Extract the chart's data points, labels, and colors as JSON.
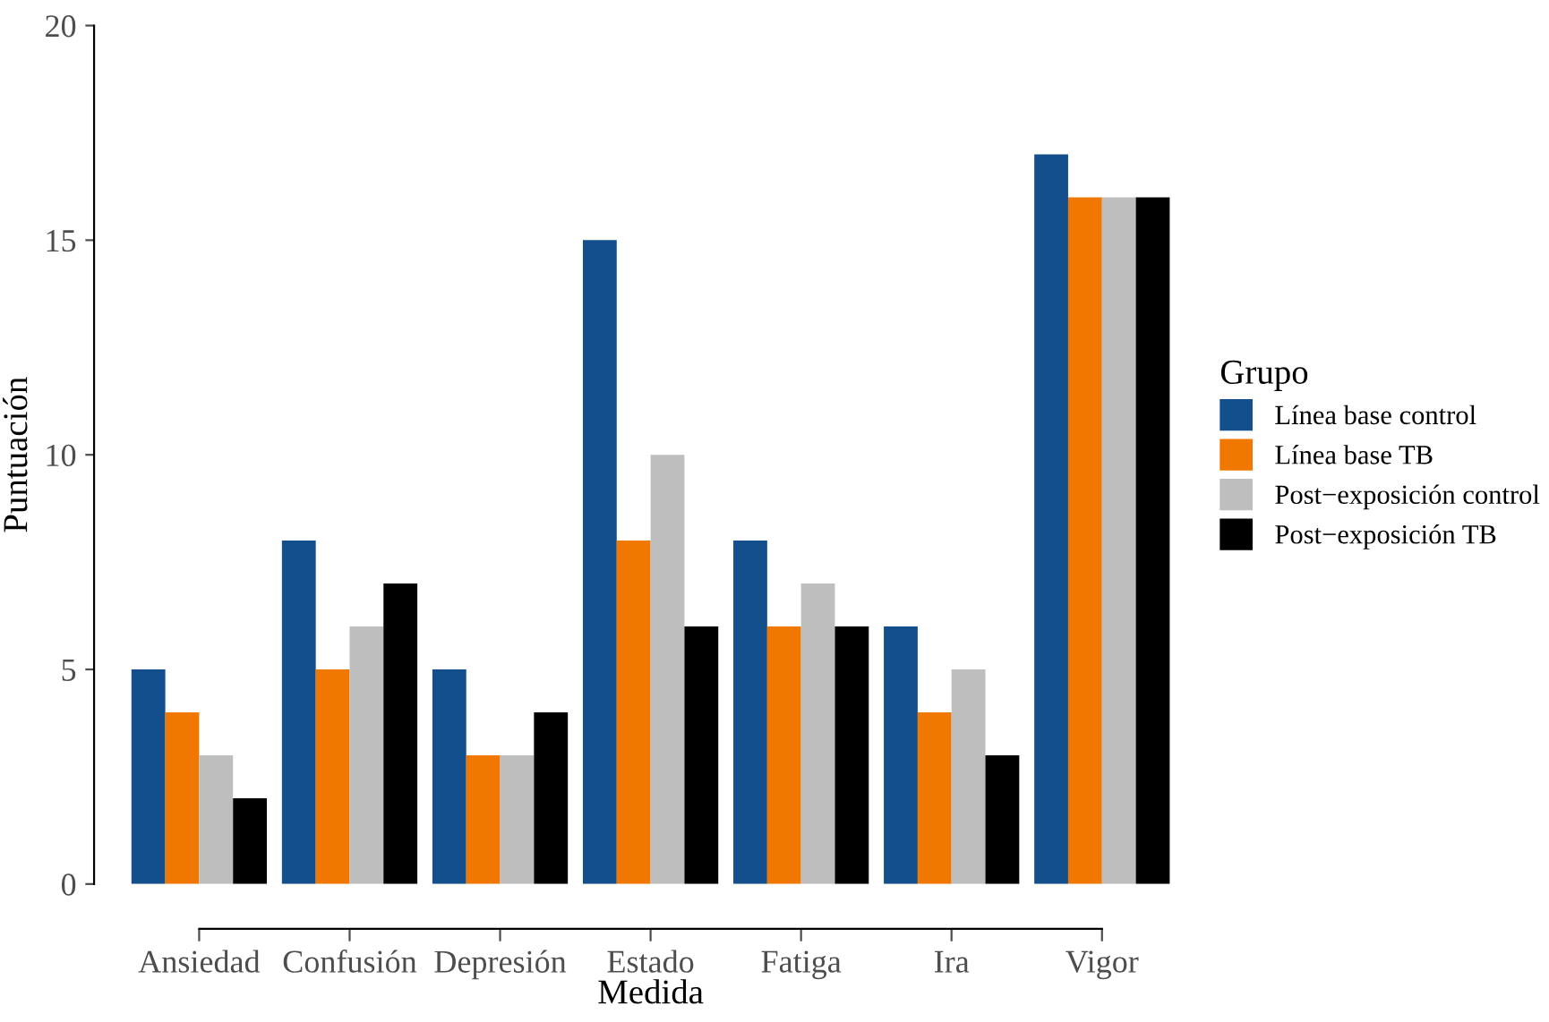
{
  "chart_data": {
    "type": "bar",
    "xlabel": "Medida",
    "ylabel": "Puntuación",
    "legend_title": "Grupo",
    "legend": "right",
    "categories": [
      "Ansiedad",
      "Confusión",
      "Depresión",
      "Estado",
      "Fatiga",
      "Ira",
      "Vigor"
    ],
    "series": [
      {
        "name": "Línea base control",
        "color": "#134f8c",
        "values": [
          5,
          8,
          5,
          15,
          8,
          6,
          17
        ]
      },
      {
        "name": "Línea base TB",
        "color": "#f07800",
        "values": [
          4,
          5,
          3,
          8,
          6,
          4,
          16
        ]
      },
      {
        "name": "Post−exposición control",
        "color": "#bebebe",
        "values": [
          3,
          6,
          3,
          10,
          7,
          5,
          16
        ]
      },
      {
        "name": "Post−exposición TB",
        "color": "#000000",
        "values": [
          2,
          7,
          4,
          6,
          6,
          3,
          16
        ]
      }
    ],
    "ylim": [
      0,
      20
    ],
    "yticks": [
      0,
      5,
      10,
      15,
      20
    ],
    "grid": false
  }
}
